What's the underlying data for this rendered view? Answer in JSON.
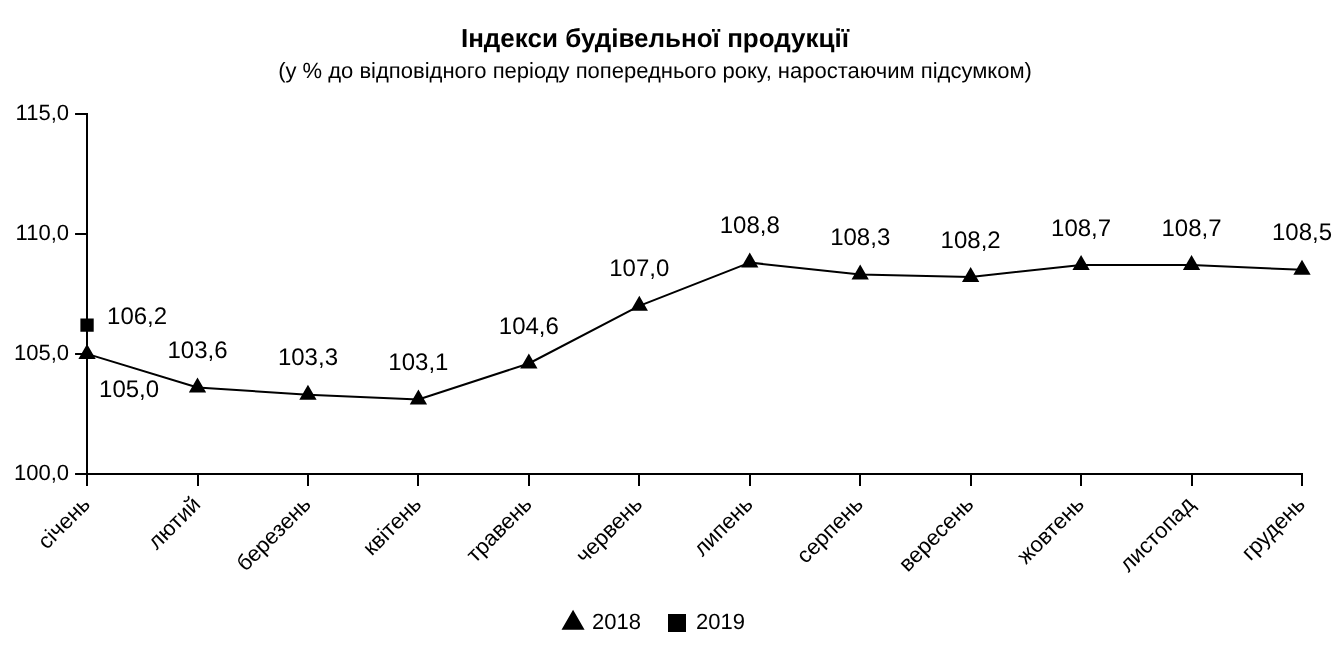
{
  "chart_data": {
    "type": "line",
    "title": "Індекси будівельної продукції",
    "subtitle": "(у % до відповідного періоду попереднього року, наростаючим підсумком)",
    "categories": [
      "січень",
      "лютий",
      "березень",
      "квітень",
      "травень",
      "червень",
      "липень",
      "серпень",
      "вересень",
      "жовтень",
      "листопад",
      "грудень"
    ],
    "series": [
      {
        "name": "2018",
        "color": "#000000",
        "marker": "triangle",
        "values": [
          105.0,
          103.6,
          103.3,
          103.1,
          104.6,
          107.0,
          108.8,
          108.3,
          108.2,
          108.7,
          108.7,
          108.5
        ],
        "value_labels": [
          "105,0",
          "103,6",
          "103,3",
          "103,1",
          "104,6",
          "107,0",
          "108,8",
          "108,3",
          "108,2",
          "108,7",
          "108,7",
          "108,5"
        ]
      },
      {
        "name": "2019",
        "color": "#000000",
        "marker": "square",
        "values": [
          106.2,
          null,
          null,
          null,
          null,
          null,
          null,
          null,
          null,
          null,
          null,
          null
        ],
        "value_labels": [
          "106,2",
          null,
          null,
          null,
          null,
          null,
          null,
          null,
          null,
          null,
          null,
          null
        ]
      }
    ],
    "ylim": [
      100,
      115
    ],
    "yticks": [
      {
        "value": 100,
        "label": "100,0"
      },
      {
        "value": 105,
        "label": "105,0"
      },
      {
        "value": 110,
        "label": "110,0"
      },
      {
        "value": 115,
        "label": "115,0"
      }
    ],
    "grid": false,
    "legend": "bottom",
    "line_style": "solid"
  }
}
